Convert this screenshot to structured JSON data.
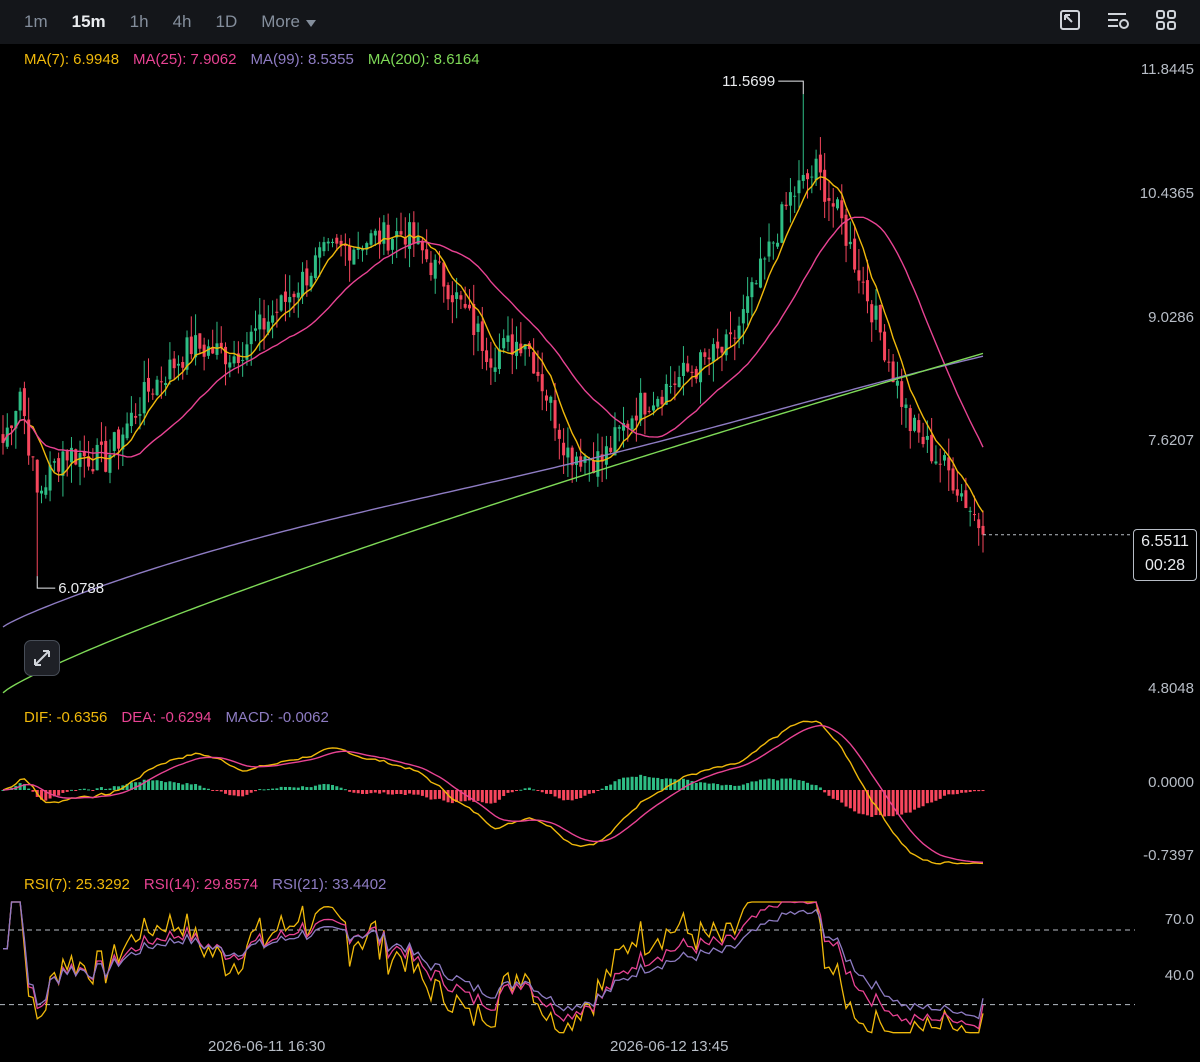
{
  "toolbar": {
    "timeframes": [
      "1m",
      "15m",
      "1h",
      "4h",
      "1D"
    ],
    "active": "15m",
    "more_label": "More",
    "icons": [
      "chart-window-icon",
      "indicator-settings-icon",
      "layout-grid-icon"
    ]
  },
  "legends": {
    "ma": [
      {
        "label": "MA(7): 6.9948",
        "color": "#f0b90b"
      },
      {
        "label": "MA(25): 7.9062",
        "color": "#e84393"
      },
      {
        "label": "MA(99): 8.5355",
        "color": "#8e7cc3"
      },
      {
        "label": "MA(200): 8.6164",
        "color": "#7ed957"
      }
    ],
    "macd": [
      {
        "label": "DIF: -0.6356",
        "color": "#f0b90b"
      },
      {
        "label": "DEA: -0.6294",
        "color": "#e84393"
      },
      {
        "label": "MACD: -0.0062",
        "color": "#8e7cc3"
      }
    ],
    "rsi": [
      {
        "label": "RSI(7): 25.3292",
        "color": "#f0b90b"
      },
      {
        "label": "RSI(14): 29.8574",
        "color": "#e84393"
      },
      {
        "label": "RSI(21): 33.4402",
        "color": "#8e7cc3"
      }
    ]
  },
  "price_axis": [
    "11.8445",
    "10.4365",
    "9.0286",
    "7.6207",
    "4.8048"
  ],
  "macd_axis": [
    "0.0000",
    "-0.7397"
  ],
  "rsi_axis": [
    "70.0",
    "40.0"
  ],
  "time_axis": [
    "2026-06-11 16:30",
    "2026-06-12 13:45"
  ],
  "annotations": {
    "high": "11.5699",
    "low": "6.0788"
  },
  "current": {
    "price": "6.5511",
    "countdown": "00:28"
  },
  "colors": {
    "up": "#2ebd85",
    "down": "#f6465d",
    "background": "#000000"
  },
  "chart_data": {
    "type": "candlestick",
    "interval": "15m",
    "price_range": [
      4.8048,
      11.8445
    ],
    "price_anchors": [
      {
        "i": 0,
        "c": 7.6
      },
      {
        "i": 4,
        "c": 8.2
      },
      {
        "i": 8,
        "c": 7.0
      },
      {
        "i": 14,
        "c": 7.5
      },
      {
        "i": 24,
        "c": 7.4
      },
      {
        "i": 34,
        "c": 8.2
      },
      {
        "i": 44,
        "c": 8.7
      },
      {
        "i": 54,
        "c": 8.6
      },
      {
        "i": 64,
        "c": 9.1
      },
      {
        "i": 74,
        "c": 9.7
      },
      {
        "i": 84,
        "c": 9.9
      },
      {
        "i": 94,
        "c": 10.0
      },
      {
        "i": 104,
        "c": 9.4
      },
      {
        "i": 114,
        "c": 8.6
      },
      {
        "i": 122,
        "c": 8.8
      },
      {
        "i": 132,
        "c": 7.5
      },
      {
        "i": 140,
        "c": 7.4
      },
      {
        "i": 148,
        "c": 8.0
      },
      {
        "i": 160,
        "c": 8.4
      },
      {
        "i": 170,
        "c": 8.7
      },
      {
        "i": 176,
        "c": 9.4
      },
      {
        "i": 184,
        "c": 10.4
      },
      {
        "i": 190,
        "c": 10.7
      },
      {
        "i": 196,
        "c": 10.1
      },
      {
        "i": 204,
        "c": 9.0
      },
      {
        "i": 212,
        "c": 7.8
      },
      {
        "i": 222,
        "c": 7.2
      },
      {
        "i": 229,
        "c": 6.6
      }
    ],
    "high": 11.5699,
    "low": 6.0788,
    "last": 6.5511,
    "moving_averages": [
      {
        "name": "MA(7)",
        "last": 6.9948
      },
      {
        "name": "MA(25)",
        "last": 7.9062
      },
      {
        "name": "MA(99)",
        "last": 8.5355
      },
      {
        "name": "MA(200)",
        "last": 8.6164
      }
    ],
    "macd": {
      "dif": -0.6356,
      "dea": -0.6294,
      "hist": -0.0062,
      "axis": [
        0.0,
        -0.7397
      ]
    },
    "rsi": {
      "rsi7": 25.3292,
      "rsi14": 29.8574,
      "rsi21": 33.4402,
      "levels": [
        70.0,
        40.0
      ]
    }
  }
}
